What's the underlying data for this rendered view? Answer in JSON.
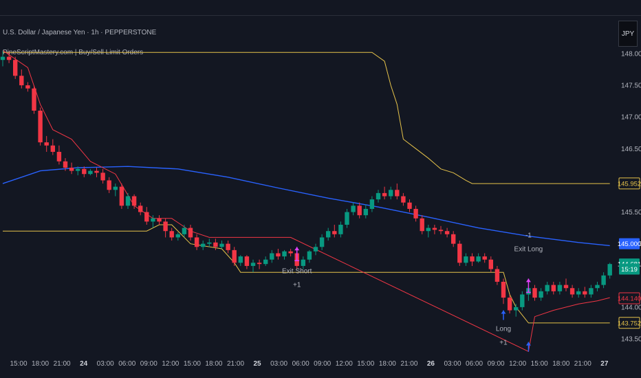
{
  "header": {
    "symbol_line": "U.S. Dollar / Japanese Yen · 1h · PEPPERSTONE",
    "indicator_line": "PineScriptMastery.com | Buy/Sell Limit Orders"
  },
  "currency_button": "JPY",
  "colors": {
    "background": "#131722",
    "bull": "#089981",
    "bear": "#f23645",
    "upper_band": "#e6c34a",
    "lower_band": "#e6c34a",
    "trail": "#f23645",
    "ma": "#2962ff",
    "signal_buy": "#2962ff",
    "signal_sell": "#e040fb",
    "axis_text": "#b2b5be"
  },
  "chart_data": {
    "type": "candlestick",
    "y_range": [
      143.25,
      148.25
    ],
    "y_ticks": [
      "148.000",
      "147.500",
      "147.000",
      "146.500",
      "145.500",
      "145.000",
      "144.000",
      "143.500"
    ],
    "x_ticks": [
      "15:00",
      "18:00",
      "21:00",
      "24",
      "03:00",
      "06:00",
      "09:00",
      "12:00",
      "15:00",
      "18:00",
      "21:00",
      "25",
      "03:00",
      "06:00",
      "09:00",
      "12:00",
      "15:00",
      "18:00",
      "21:00",
      "26",
      "03:00",
      "06:00",
      "09:00",
      "12:00",
      "15:00",
      "18:00",
      "21:00",
      "27"
    ],
    "candles": [
      [
        147.9,
        148.05,
        147.8,
        147.95
      ],
      [
        147.95,
        148.03,
        147.85,
        147.9
      ],
      [
        147.9,
        147.95,
        147.6,
        147.65
      ],
      [
        147.65,
        147.75,
        147.45,
        147.5
      ],
      [
        147.5,
        147.55,
        147.4,
        147.45
      ],
      [
        147.45,
        147.5,
        147.05,
        147.1
      ],
      [
        147.1,
        147.15,
        146.55,
        146.6
      ],
      [
        146.6,
        146.7,
        146.45,
        146.55
      ],
      [
        146.55,
        146.65,
        146.4,
        146.45
      ],
      [
        146.45,
        146.55,
        146.25,
        146.3
      ],
      [
        146.3,
        146.35,
        146.15,
        146.2
      ],
      [
        146.2,
        146.28,
        146.1,
        146.15
      ],
      [
        146.15,
        146.22,
        146.08,
        146.18
      ],
      [
        146.18,
        146.22,
        146.05,
        146.1
      ],
      [
        146.1,
        146.18,
        146.08,
        146.15
      ],
      [
        146.15,
        146.2,
        146.05,
        146.12
      ],
      [
        146.12,
        146.18,
        145.95,
        146.0
      ],
      [
        146.0,
        146.05,
        145.8,
        145.85
      ],
      [
        145.85,
        145.95,
        145.75,
        145.9
      ],
      [
        145.9,
        145.95,
        145.55,
        145.6
      ],
      [
        145.6,
        145.8,
        145.55,
        145.75
      ],
      [
        145.75,
        145.78,
        145.55,
        145.6
      ],
      [
        145.6,
        145.65,
        145.45,
        145.5
      ],
      [
        145.5,
        145.58,
        145.3,
        145.35
      ],
      [
        145.35,
        145.45,
        145.25,
        145.4
      ],
      [
        145.4,
        145.45,
        145.3,
        145.35
      ],
      [
        145.35,
        145.4,
        145.1,
        145.2
      ],
      [
        145.2,
        145.25,
        145.05,
        145.1
      ],
      [
        145.1,
        145.18,
        145.05,
        145.15
      ],
      [
        145.15,
        145.3,
        145.1,
        145.25
      ],
      [
        145.25,
        145.3,
        145.05,
        145.1
      ],
      [
        145.1,
        145.15,
        144.9,
        144.95
      ],
      [
        144.95,
        145.05,
        144.9,
        145.0
      ],
      [
        145.0,
        145.08,
        144.95,
        145.02
      ],
      [
        145.02,
        145.08,
        144.9,
        144.95
      ],
      [
        144.95,
        145.05,
        144.92,
        145.0
      ],
      [
        145.0,
        145.05,
        144.85,
        144.9
      ],
      [
        144.9,
        144.95,
        144.65,
        144.7
      ],
      [
        144.7,
        144.82,
        144.65,
        144.8
      ],
      [
        144.8,
        144.82,
        144.6,
        144.65
      ],
      [
        144.65,
        144.75,
        144.55,
        144.7
      ],
      [
        144.7,
        144.75,
        144.6,
        144.68
      ],
      [
        144.68,
        144.8,
        144.65,
        144.75
      ],
      [
        144.75,
        144.9,
        144.7,
        144.85
      ],
      [
        144.85,
        144.92,
        144.75,
        144.8
      ],
      [
        144.8,
        144.9,
        144.75,
        144.88
      ],
      [
        144.88,
        144.92,
        144.8,
        144.85
      ],
      [
        144.85,
        144.88,
        144.6,
        144.65
      ],
      [
        144.65,
        144.8,
        144.6,
        144.75
      ],
      [
        144.75,
        144.9,
        144.7,
        144.88
      ],
      [
        144.88,
        145.0,
        144.82,
        144.95
      ],
      [
        144.95,
        145.15,
        144.9,
        145.1
      ],
      [
        145.1,
        145.25,
        145.05,
        145.2
      ],
      [
        145.2,
        145.3,
        145.1,
        145.15
      ],
      [
        145.15,
        145.35,
        145.1,
        145.3
      ],
      [
        145.3,
        145.55,
        145.25,
        145.5
      ],
      [
        145.5,
        145.65,
        145.45,
        145.6
      ],
      [
        145.6,
        145.65,
        145.4,
        145.45
      ],
      [
        145.45,
        145.62,
        145.4,
        145.55
      ],
      [
        145.55,
        145.75,
        145.5,
        145.7
      ],
      [
        145.7,
        145.85,
        145.65,
        145.8
      ],
      [
        145.8,
        145.9,
        145.7,
        145.75
      ],
      [
        145.75,
        145.9,
        145.7,
        145.85
      ],
      [
        145.85,
        145.95,
        145.7,
        145.75
      ],
      [
        145.75,
        145.8,
        145.6,
        145.65
      ],
      [
        145.65,
        145.7,
        145.5,
        145.55
      ],
      [
        145.55,
        145.6,
        145.35,
        145.4
      ],
      [
        145.4,
        145.45,
        145.15,
        145.2
      ],
      [
        145.2,
        145.3,
        145.1,
        145.25
      ],
      [
        145.25,
        145.3,
        145.15,
        145.22
      ],
      [
        145.22,
        145.28,
        145.15,
        145.2
      ],
      [
        145.2,
        145.25,
        145.1,
        145.15
      ],
      [
        145.15,
        145.2,
        144.95,
        145.0
      ],
      [
        145.0,
        145.05,
        144.65,
        144.7
      ],
      [
        144.7,
        144.85,
        144.65,
        144.8
      ],
      [
        144.8,
        144.85,
        144.65,
        144.72
      ],
      [
        144.72,
        144.85,
        144.7,
        144.8
      ],
      [
        144.8,
        144.85,
        144.7,
        144.75
      ],
      [
        144.75,
        144.8,
        144.55,
        144.6
      ],
      [
        144.6,
        144.65,
        144.35,
        144.4
      ],
      [
        144.4,
        144.45,
        144.05,
        144.15
      ],
      [
        144.15,
        144.2,
        143.9,
        143.95
      ],
      [
        143.95,
        144.05,
        143.85,
        144.0
      ],
      [
        144.0,
        144.25,
        143.95,
        144.2
      ],
      [
        144.2,
        144.35,
        144.1,
        144.3
      ],
      [
        144.3,
        144.35,
        144.1,
        144.15
      ],
      [
        144.15,
        144.3,
        144.1,
        144.25
      ],
      [
        144.25,
        144.4,
        144.2,
        144.35
      ],
      [
        144.35,
        144.4,
        144.2,
        144.25
      ],
      [
        144.25,
        144.4,
        144.2,
        144.35
      ],
      [
        144.35,
        144.45,
        144.25,
        144.3
      ],
      [
        144.3,
        144.35,
        144.15,
        144.2
      ],
      [
        144.2,
        144.3,
        144.15,
        144.25
      ],
      [
        144.25,
        144.32,
        144.15,
        144.2
      ],
      [
        144.2,
        144.35,
        144.15,
        144.3
      ],
      [
        144.3,
        144.4,
        144.25,
        144.35
      ],
      [
        144.35,
        144.55,
        144.3,
        144.5
      ],
      [
        144.5,
        144.7,
        144.45,
        144.68
      ]
    ],
    "upper_band": [
      [
        0,
        148.02
      ],
      [
        48,
        148.02
      ],
      [
        59,
        148.02
      ],
      [
        61,
        147.88
      ],
      [
        62,
        147.5
      ],
      [
        63,
        147.2
      ],
      [
        64,
        146.65
      ],
      [
        66,
        146.5
      ],
      [
        68,
        146.35
      ],
      [
        70,
        146.18
      ],
      [
        72,
        146.12
      ],
      [
        74,
        146.0
      ],
      [
        75,
        145.95
      ],
      [
        97,
        145.95
      ]
    ],
    "lower_band": [
      [
        0,
        145.2
      ],
      [
        23,
        145.2
      ],
      [
        25,
        145.3
      ],
      [
        27,
        145.3
      ],
      [
        30,
        145.0
      ],
      [
        35,
        144.92
      ],
      [
        37,
        144.7
      ],
      [
        38,
        144.55
      ],
      [
        80,
        144.55
      ],
      [
        81,
        144.2
      ],
      [
        82,
        144.0
      ],
      [
        84,
        143.75
      ],
      [
        97,
        143.75
      ]
    ],
    "trail_line": [
      [
        0,
        148.05
      ],
      [
        4,
        147.78
      ],
      [
        6,
        147.2
      ],
      [
        8,
        146.8
      ],
      [
        11,
        146.65
      ],
      [
        14,
        146.3
      ],
      [
        18,
        146.1
      ],
      [
        21,
        145.6
      ],
      [
        24,
        145.4
      ],
      [
        27,
        145.4
      ],
      [
        30,
        145.2
      ],
      [
        33,
        145.1
      ],
      [
        37,
        145.1
      ],
      [
        40,
        145.1
      ],
      [
        44,
        145.1
      ],
      [
        46,
        145.1
      ],
      [
        84,
        143.3
      ],
      [
        85,
        143.85
      ],
      [
        88,
        143.95
      ],
      [
        92,
        144.05
      ],
      [
        95,
        144.1
      ],
      [
        97,
        144.15
      ]
    ],
    "ma_line": [
      [
        0,
        145.95
      ],
      [
        6,
        146.15
      ],
      [
        12,
        146.2
      ],
      [
        20,
        146.22
      ],
      [
        28,
        146.18
      ],
      [
        36,
        146.05
      ],
      [
        44,
        145.88
      ],
      [
        52,
        145.72
      ],
      [
        60,
        145.58
      ],
      [
        68,
        145.42
      ],
      [
        76,
        145.25
      ],
      [
        84,
        145.12
      ],
      [
        92,
        145.02
      ],
      [
        97,
        144.97
      ]
    ],
    "price_labels": [
      {
        "value": 145.952,
        "text": "145.952",
        "kind": "upper_band"
      },
      {
        "value": 145.0,
        "text": "145.000",
        "kind": "ma"
      },
      {
        "value": 144.681,
        "text": "144.681",
        "kind": "bull"
      },
      {
        "value": 144.6,
        "text": "15:19",
        "kind": "bull"
      },
      {
        "value": 144.14,
        "text": "144.140",
        "kind": "trail"
      },
      {
        "value": 143.752,
        "text": "143.752",
        "kind": "lower_band"
      }
    ],
    "signals": [
      {
        "index": 47,
        "price": 144.95,
        "type": "exit-short",
        "label": "Exit Short",
        "qty": "+1"
      },
      {
        "index": 84,
        "price": 144.45,
        "type": "exit-long",
        "label": "Exit Long",
        "qty": "-1"
      },
      {
        "index": 80,
        "price": 143.95,
        "type": "long",
        "label": "Long",
        "qty": "+1"
      },
      {
        "index": 84,
        "price": 143.45,
        "type": "long-arrow",
        "label": "",
        "qty": ""
      }
    ]
  }
}
